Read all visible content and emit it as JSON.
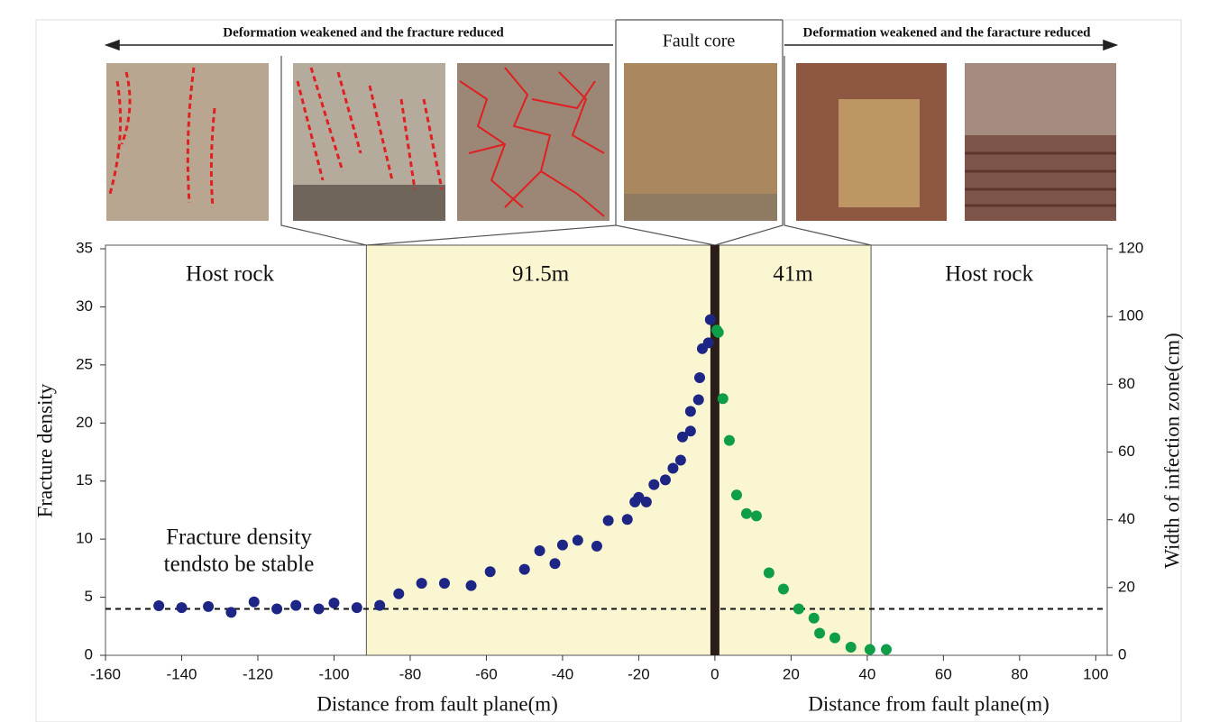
{
  "chart_data": {
    "type": "scatter",
    "top_labels": {
      "left": "Deformation weakened and the fracture reduced",
      "center": "Fault core",
      "right": "Deformation weakened and the faracture reduced"
    },
    "zone_labels": [
      "Host rock",
      "91.5m",
      "41m",
      "Host rock"
    ],
    "note": [
      "Fracture density",
      "tendsto be stable"
    ],
    "xlabel": "Distance from fault plane(m)",
    "ylabel": "Fracture density",
    "y2label": "Width of infection zone(cm)",
    "xlim": [
      -160,
      103
    ],
    "ylim": [
      0,
      35
    ],
    "y2lim": [
      0,
      120
    ],
    "xticks": [
      -160,
      -140,
      -120,
      -100,
      -80,
      -60,
      -40,
      -20,
      0,
      20,
      40,
      60,
      80,
      100
    ],
    "yticks": [
      0,
      5,
      10,
      15,
      20,
      25,
      30,
      35
    ],
    "y2ticks": [
      0,
      20,
      40,
      60,
      80,
      100,
      120
    ],
    "zone_bounds": [
      -91.5,
      0,
      41
    ],
    "reference_y": 4,
    "series": [
      {
        "color": "#1d2585",
        "x": [
          -146,
          -140,
          -133,
          -127,
          -121,
          -115,
          -110,
          -104,
          -100,
          -94,
          -88,
          -83,
          -77,
          -71,
          -64,
          -59,
          -50,
          -46,
          -42,
          -40,
          -36,
          -31,
          -28,
          -23,
          -21,
          -20,
          -18,
          -16,
          -13,
          -11,
          -9,
          -8.5,
          -6.4,
          -6.4,
          -4.3,
          -4,
          -3.3,
          -1.7,
          -1.2
        ],
        "values": [
          4.27,
          4.1,
          4.2,
          3.7,
          4.6,
          4.0,
          4.3,
          4.0,
          4.5,
          4.1,
          4.3,
          5.3,
          6.2,
          6.2,
          6.0,
          7.2,
          7.4,
          9.0,
          7.9,
          9.5,
          9.9,
          9.4,
          11.6,
          11.7,
          13.2,
          13.6,
          13.2,
          14.7,
          15.1,
          16.1,
          16.8,
          18.8,
          19.3,
          21.0,
          22.0,
          23.9,
          26.4,
          26.9,
          28.9
        ]
      },
      {
        "color": "#0f9e48",
        "x": [
          0.5,
          0.9,
          2.1,
          3.8,
          5.7,
          8.3,
          10.9,
          14.2,
          18,
          22,
          26,
          27.5,
          31.5,
          35.7,
          40.7,
          45
        ],
        "values": [
          28.0,
          27.8,
          22.1,
          18.5,
          13.8,
          12.2,
          12.0,
          7.1,
          5.7,
          4.0,
          3.2,
          1.9,
          1.5,
          0.7,
          0.5,
          0.5
        ]
      }
    ]
  }
}
